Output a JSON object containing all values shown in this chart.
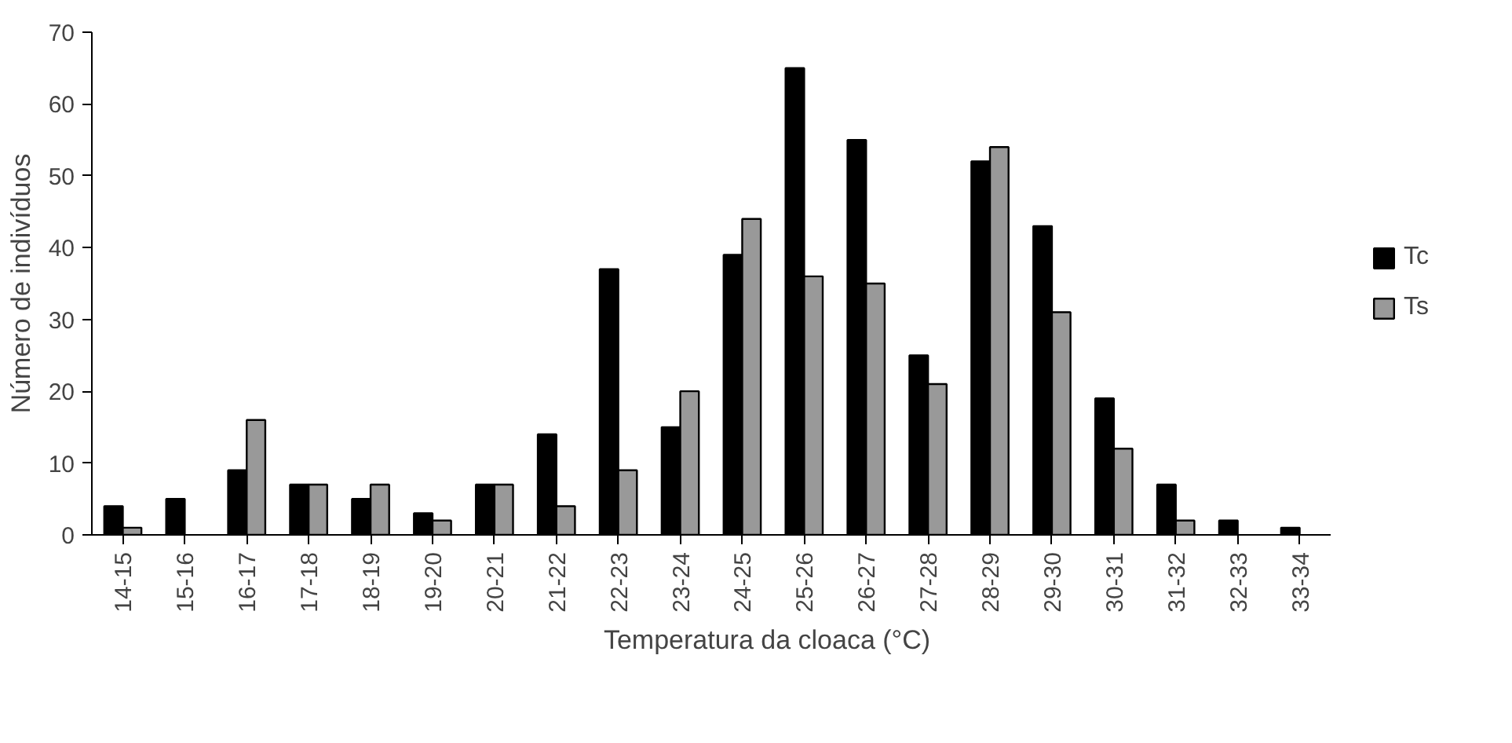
{
  "chart_data": {
    "type": "bar",
    "xlabel": "Temperatura da cloaca (°C)",
    "ylabel": "Número de indivíduos",
    "categories": [
      "14-15",
      "15-16",
      "16-17",
      "17-18",
      "18-19",
      "19-20",
      "20-21",
      "21-22",
      "22-23",
      "23-24",
      "24-25",
      "25-26",
      "26-27",
      "27-28",
      "28-29",
      "29-30",
      "30-31",
      "31-32",
      "32-33",
      "33-34"
    ],
    "series": [
      {
        "name": "Tc",
        "color": "#000000",
        "values": [
          4,
          5,
          9,
          7,
          5,
          3,
          7,
          14,
          37,
          15,
          39,
          65,
          55,
          25,
          52,
          43,
          19,
          7,
          2,
          1
        ]
      },
      {
        "name": "Ts",
        "color": "#999999",
        "values": [
          1,
          0,
          16,
          7,
          7,
          2,
          7,
          4,
          9,
          20,
          44,
          36,
          35,
          21,
          54,
          31,
          12,
          2,
          0,
          0
        ]
      }
    ],
    "ylim": [
      0,
      70
    ],
    "yticks": [
      0,
      10,
      20,
      30,
      40,
      50,
      60,
      70
    ],
    "grid": false,
    "legend": "right"
  }
}
